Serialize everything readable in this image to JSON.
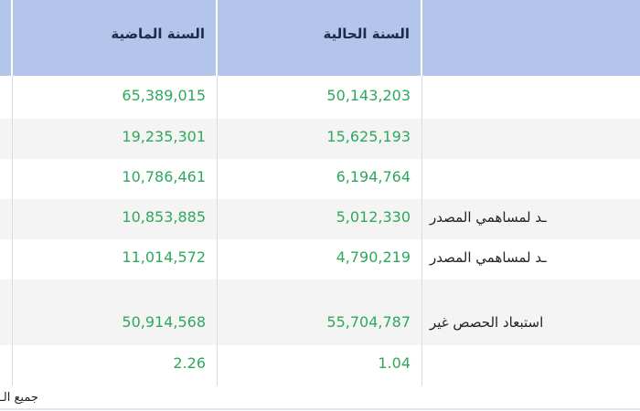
{
  "header": {
    "last_year": "السنة الماضية",
    "current_year": "السنة الحالية",
    "label": ""
  },
  "rows": [
    {
      "label": "",
      "current": "50,143,203",
      "last": "65,389,015"
    },
    {
      "label": "",
      "current": "15,625,193",
      "last": "19,235,301"
    },
    {
      "label": "",
      "current": "6,194,764",
      "last": "10,786,461"
    },
    {
      "label": "ـد لمساهمي المصدر",
      "current": "5,012,330",
      "last": "10,853,885"
    },
    {
      "label": "ـد لمساهمي المصدر",
      "current": "4,790,219",
      "last": "11,014,572"
    },
    {
      "label": "استبعاد الحصص غير",
      "current": "55,704,787",
      "last": "50,914,568"
    },
    {
      "label": "",
      "current": "1.04",
      "last": "2.26"
    }
  ],
  "footer": "جميع الـ",
  "colors": {
    "header_bg": "#b3c5ea",
    "value_text": "#2ea85c",
    "header_text": "#1c2b48"
  }
}
